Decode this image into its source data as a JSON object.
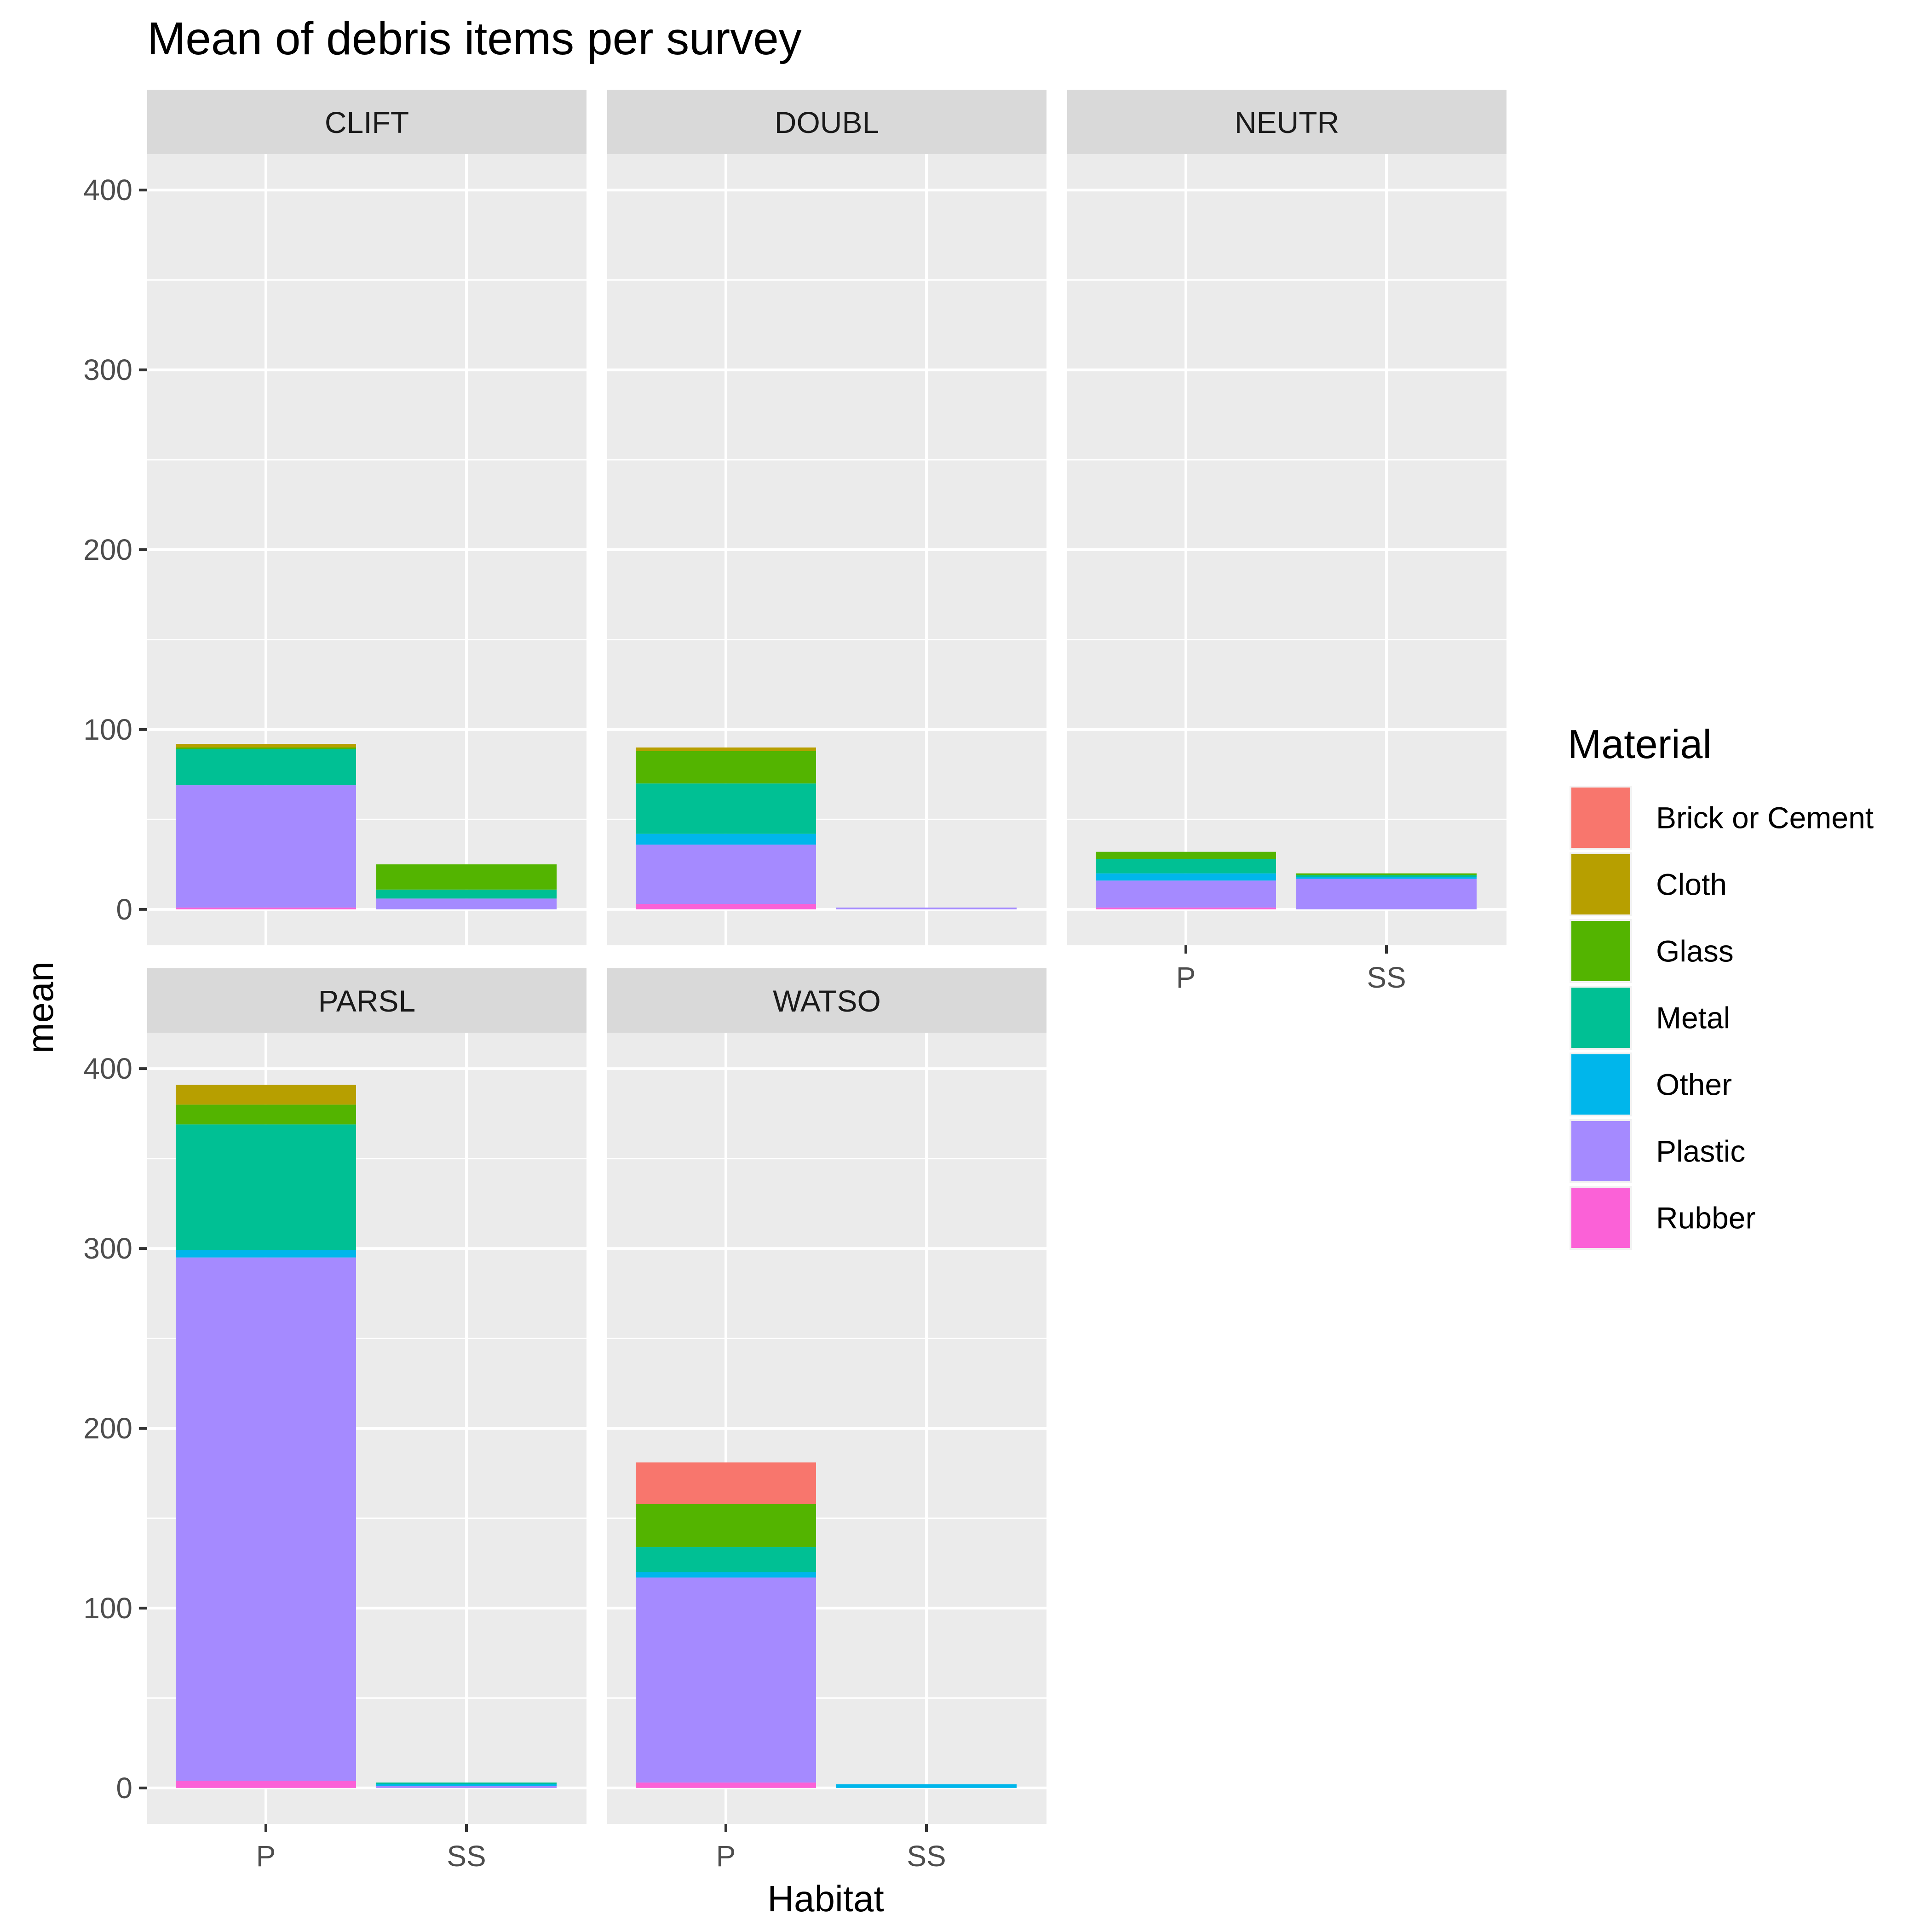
{
  "chart_data": {
    "type": "bar",
    "stacked": true,
    "faceted": true,
    "title": "Mean of debris items per survey",
    "xlabel": "Habitat",
    "ylabel": "mean",
    "ylim": [
      -20,
      420
    ],
    "yticks": [
      0,
      100,
      200,
      300,
      400
    ],
    "ytick_labels": [
      "0",
      "100",
      "200",
      "300",
      "400"
    ],
    "grid": true,
    "legend": {
      "title": "Material",
      "position": "right",
      "entries": [
        "Brick or Cement",
        "Cloth",
        "Glass",
        "Metal",
        "Other",
        "Plastic",
        "Rubber"
      ]
    },
    "stack_order_bottom_to_top": [
      "Rubber",
      "Plastic",
      "Other",
      "Metal",
      "Glass",
      "Cloth",
      "Brick or Cement"
    ],
    "colors": {
      "Brick or Cement": "#F8766D",
      "Cloth": "#B79F00",
      "Glass": "#53B400",
      "Metal": "#00C094",
      "Other": "#00B6EB",
      "Plastic": "#A58AFF",
      "Rubber": "#FB61D7"
    },
    "categories": [
      "P",
      "SS"
    ],
    "facets": [
      {
        "name": "CLIFT",
        "bars": {
          "P": {
            "Rubber": 1,
            "Plastic": 68,
            "Other": 0,
            "Metal": 20,
            "Glass": 1,
            "Cloth": 2,
            "Brick or Cement": 0
          },
          "SS": {
            "Rubber": 0,
            "Plastic": 6,
            "Other": 0,
            "Metal": 5,
            "Glass": 14,
            "Cloth": 0,
            "Brick or Cement": 0
          }
        }
      },
      {
        "name": "DOUBL",
        "bars": {
          "P": {
            "Rubber": 3,
            "Plastic": 33,
            "Other": 6,
            "Metal": 28,
            "Glass": 18,
            "Cloth": 2,
            "Brick or Cement": 0
          },
          "SS": {
            "Rubber": 0,
            "Plastic": 1,
            "Other": 0,
            "Metal": 0,
            "Glass": 0,
            "Cloth": 0,
            "Brick or Cement": 0
          }
        }
      },
      {
        "name": "NEUTR",
        "bars": {
          "P": {
            "Rubber": 1,
            "Plastic": 15,
            "Other": 4,
            "Metal": 8,
            "Glass": 4,
            "Cloth": 0,
            "Brick or Cement": 0
          },
          "SS": {
            "Rubber": 0,
            "Plastic": 17,
            "Other": 1,
            "Metal": 1,
            "Glass": 1,
            "Cloth": 0,
            "Brick or Cement": 0
          }
        }
      },
      {
        "name": "PARSL",
        "bars": {
          "P": {
            "Rubber": 4,
            "Plastic": 291,
            "Other": 4,
            "Metal": 70,
            "Glass": 11,
            "Cloth": 11,
            "Brick or Cement": 0
          },
          "SS": {
            "Rubber": 0,
            "Plastic": 1,
            "Other": 1,
            "Metal": 1,
            "Glass": 0,
            "Cloth": 0,
            "Brick or Cement": 0
          }
        }
      },
      {
        "name": "WATSO",
        "bars": {
          "P": {
            "Rubber": 3,
            "Plastic": 114,
            "Other": 3,
            "Metal": 14,
            "Glass": 24,
            "Cloth": 0,
            "Brick or Cement": 23
          },
          "SS": {
            "Rubber": 0,
            "Plastic": 0,
            "Other": 2,
            "Metal": 0,
            "Glass": 0,
            "Cloth": 0,
            "Brick or Cement": 0
          }
        }
      }
    ]
  }
}
